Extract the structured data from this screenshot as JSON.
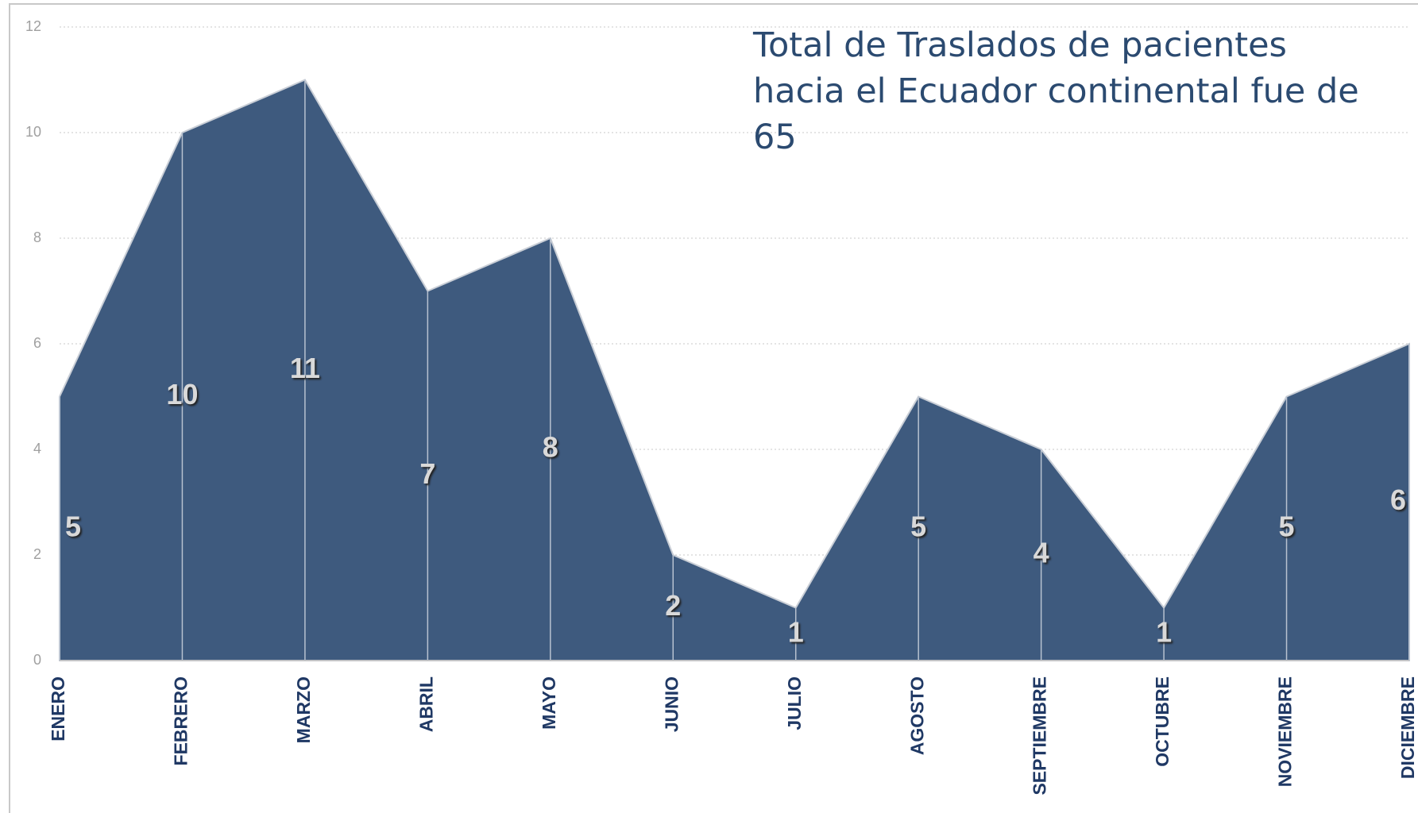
{
  "chart_data": {
    "type": "area",
    "title": "Total de Traslados de pacientes hacia el Ecuador continental fue de 65",
    "categories": [
      "ENERO",
      "FEBRERO",
      "MARZO",
      "ABRIL",
      "MAYO",
      "JUNIO",
      "JULIO",
      "AGOSTO",
      "SEPTIEMBRE",
      "OCTUBRE",
      "NOVIEMBRE",
      "DICIEMBRE"
    ],
    "values": [
      5,
      10,
      11,
      7,
      8,
      2,
      1,
      5,
      4,
      1,
      5,
      6
    ],
    "color": "#3e5a7e",
    "ylim": [
      0,
      12
    ],
    "yticks": [
      0,
      2,
      4,
      6,
      8,
      10,
      12
    ],
    "grid": true
  }
}
